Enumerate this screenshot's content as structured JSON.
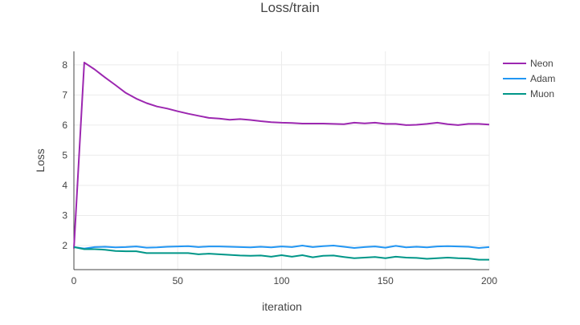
{
  "chart_data": {
    "type": "line",
    "title": "Loss/train",
    "xlabel": "iteration",
    "ylabel": "Loss",
    "xlim": [
      0,
      200
    ],
    "ylim": [
      1.2,
      8.45
    ],
    "xticks": [
      0,
      50,
      100,
      150,
      200
    ],
    "yticks": [
      2,
      3,
      4,
      5,
      6,
      7,
      8
    ],
    "grid": true,
    "legend_position": "top-right",
    "series": [
      {
        "name": "Neon",
        "color": "#9c27b0",
        "x": [
          0,
          5,
          10,
          15,
          20,
          25,
          30,
          35,
          40,
          45,
          50,
          55,
          60,
          65,
          70,
          75,
          80,
          85,
          90,
          95,
          100,
          105,
          110,
          115,
          120,
          125,
          130,
          135,
          140,
          145,
          150,
          155,
          160,
          165,
          170,
          175,
          180,
          185,
          190,
          195,
          200
        ],
        "y": [
          1.9,
          8.08,
          7.85,
          7.58,
          7.33,
          7.07,
          6.88,
          6.73,
          6.62,
          6.55,
          6.46,
          6.38,
          6.31,
          6.24,
          6.22,
          6.18,
          6.2,
          6.17,
          6.13,
          6.1,
          6.08,
          6.07,
          6.05,
          6.05,
          6.05,
          6.04,
          6.03,
          6.08,
          6.06,
          6.08,
          6.04,
          6.04,
          6.0,
          6.01,
          6.04,
          6.08,
          6.03,
          6.0,
          6.04,
          6.04,
          6.02
        ]
      },
      {
        "name": "Adam",
        "color": "#2196f3",
        "x": [
          0,
          5,
          10,
          15,
          20,
          25,
          30,
          35,
          40,
          45,
          50,
          55,
          60,
          65,
          70,
          75,
          80,
          85,
          90,
          95,
          100,
          105,
          110,
          115,
          120,
          125,
          130,
          135,
          140,
          145,
          150,
          155,
          160,
          165,
          170,
          175,
          180,
          185,
          190,
          195,
          200
        ],
        "y": [
          1.95,
          1.9,
          1.95,
          1.96,
          1.94,
          1.95,
          1.97,
          1.93,
          1.94,
          1.96,
          1.97,
          1.98,
          1.95,
          1.97,
          1.97,
          1.96,
          1.95,
          1.94,
          1.96,
          1.94,
          1.97,
          1.95,
          2.0,
          1.95,
          1.98,
          2.0,
          1.96,
          1.92,
          1.95,
          1.97,
          1.93,
          1.99,
          1.94,
          1.96,
          1.94,
          1.97,
          1.98,
          1.97,
          1.96,
          1.92,
          1.95
        ]
      },
      {
        "name": "Muon",
        "color": "#009688",
        "x": [
          0,
          5,
          10,
          15,
          20,
          25,
          30,
          35,
          40,
          45,
          50,
          55,
          60,
          65,
          70,
          75,
          80,
          85,
          90,
          95,
          100,
          105,
          110,
          115,
          120,
          125,
          130,
          135,
          140,
          145,
          150,
          155,
          160,
          165,
          170,
          175,
          180,
          185,
          190,
          195,
          200
        ],
        "y": [
          1.95,
          1.88,
          1.88,
          1.86,
          1.82,
          1.81,
          1.81,
          1.75,
          1.75,
          1.75,
          1.75,
          1.75,
          1.71,
          1.73,
          1.71,
          1.69,
          1.67,
          1.66,
          1.67,
          1.63,
          1.68,
          1.63,
          1.68,
          1.61,
          1.66,
          1.67,
          1.62,
          1.58,
          1.6,
          1.62,
          1.58,
          1.63,
          1.6,
          1.59,
          1.56,
          1.58,
          1.6,
          1.58,
          1.57,
          1.53,
          1.53
        ]
      }
    ]
  }
}
